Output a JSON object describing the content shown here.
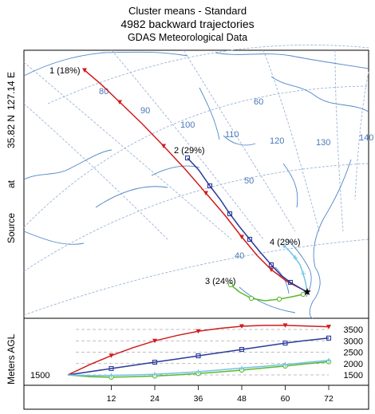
{
  "header": {
    "line1": "Cluster means - Standard",
    "line2": "4982 backward trajectories",
    "line3": "GDAS Meteorological Data"
  },
  "side": {
    "source": "Source",
    "at": "at",
    "lat": "35.82 N",
    "lon": "127.14 E",
    "meters_agl": "Meters AGL"
  },
  "map": {
    "meridian_labels": [
      "80",
      "90",
      "100",
      "110",
      "120",
      "130",
      "140"
    ],
    "parallel_labels": [
      "60",
      "50",
      "40"
    ],
    "source_marker": "star",
    "colors": {
      "grid": "#9bb3d6",
      "land": "#4f86c8",
      "label": "#4a78b8"
    }
  },
  "clusters": [
    {
      "label": "1 (18%)",
      "color": "#d01c1c",
      "marker": "triangle-down"
    },
    {
      "label": "2 (29%)",
      "color": "#2b3a9a",
      "marker": "square"
    },
    {
      "label": "3 (24%)",
      "color": "#5cb82e",
      "marker": "circle"
    },
    {
      "label": "4 (29%)",
      "color": "#70c4e4",
      "marker": "cross"
    }
  ],
  "profile": {
    "start_label": "1500",
    "y_ticks": [
      "3500",
      "3000",
      "2500",
      "2000",
      "1500"
    ],
    "x_ticks": [
      "12",
      "24",
      "36",
      "48",
      "60",
      "72"
    ]
  },
  "chart_data": {
    "type": "line",
    "title": "",
    "xlabel": "",
    "ylabel": "Meters AGL",
    "x": [
      0,
      6,
      12,
      18,
      24,
      30,
      36,
      42,
      48,
      54,
      60,
      66,
      72
    ],
    "xlim": [
      0,
      72
    ],
    "ylim": [
      1000,
      3800
    ],
    "series": [
      {
        "name": "1 (18%)",
        "values": [
          1500,
          1950,
          2350,
          2700,
          3000,
          3230,
          3420,
          3550,
          3640,
          3680,
          3680,
          3650,
          3620
        ]
      },
      {
        "name": "2 (29%)",
        "values": [
          1500,
          1640,
          1780,
          1920,
          2060,
          2200,
          2340,
          2480,
          2620,
          2760,
          2900,
          3020,
          3120
        ]
      },
      {
        "name": "3 (24%)",
        "values": [
          1500,
          1420,
          1400,
          1420,
          1450,
          1500,
          1560,
          1630,
          1710,
          1800,
          1890,
          1990,
          2080
        ]
      },
      {
        "name": "4 (29%)",
        "values": [
          1500,
          1470,
          1480,
          1500,
          1530,
          1580,
          1640,
          1720,
          1800,
          1880,
          1960,
          2050,
          2140
        ]
      }
    ]
  }
}
